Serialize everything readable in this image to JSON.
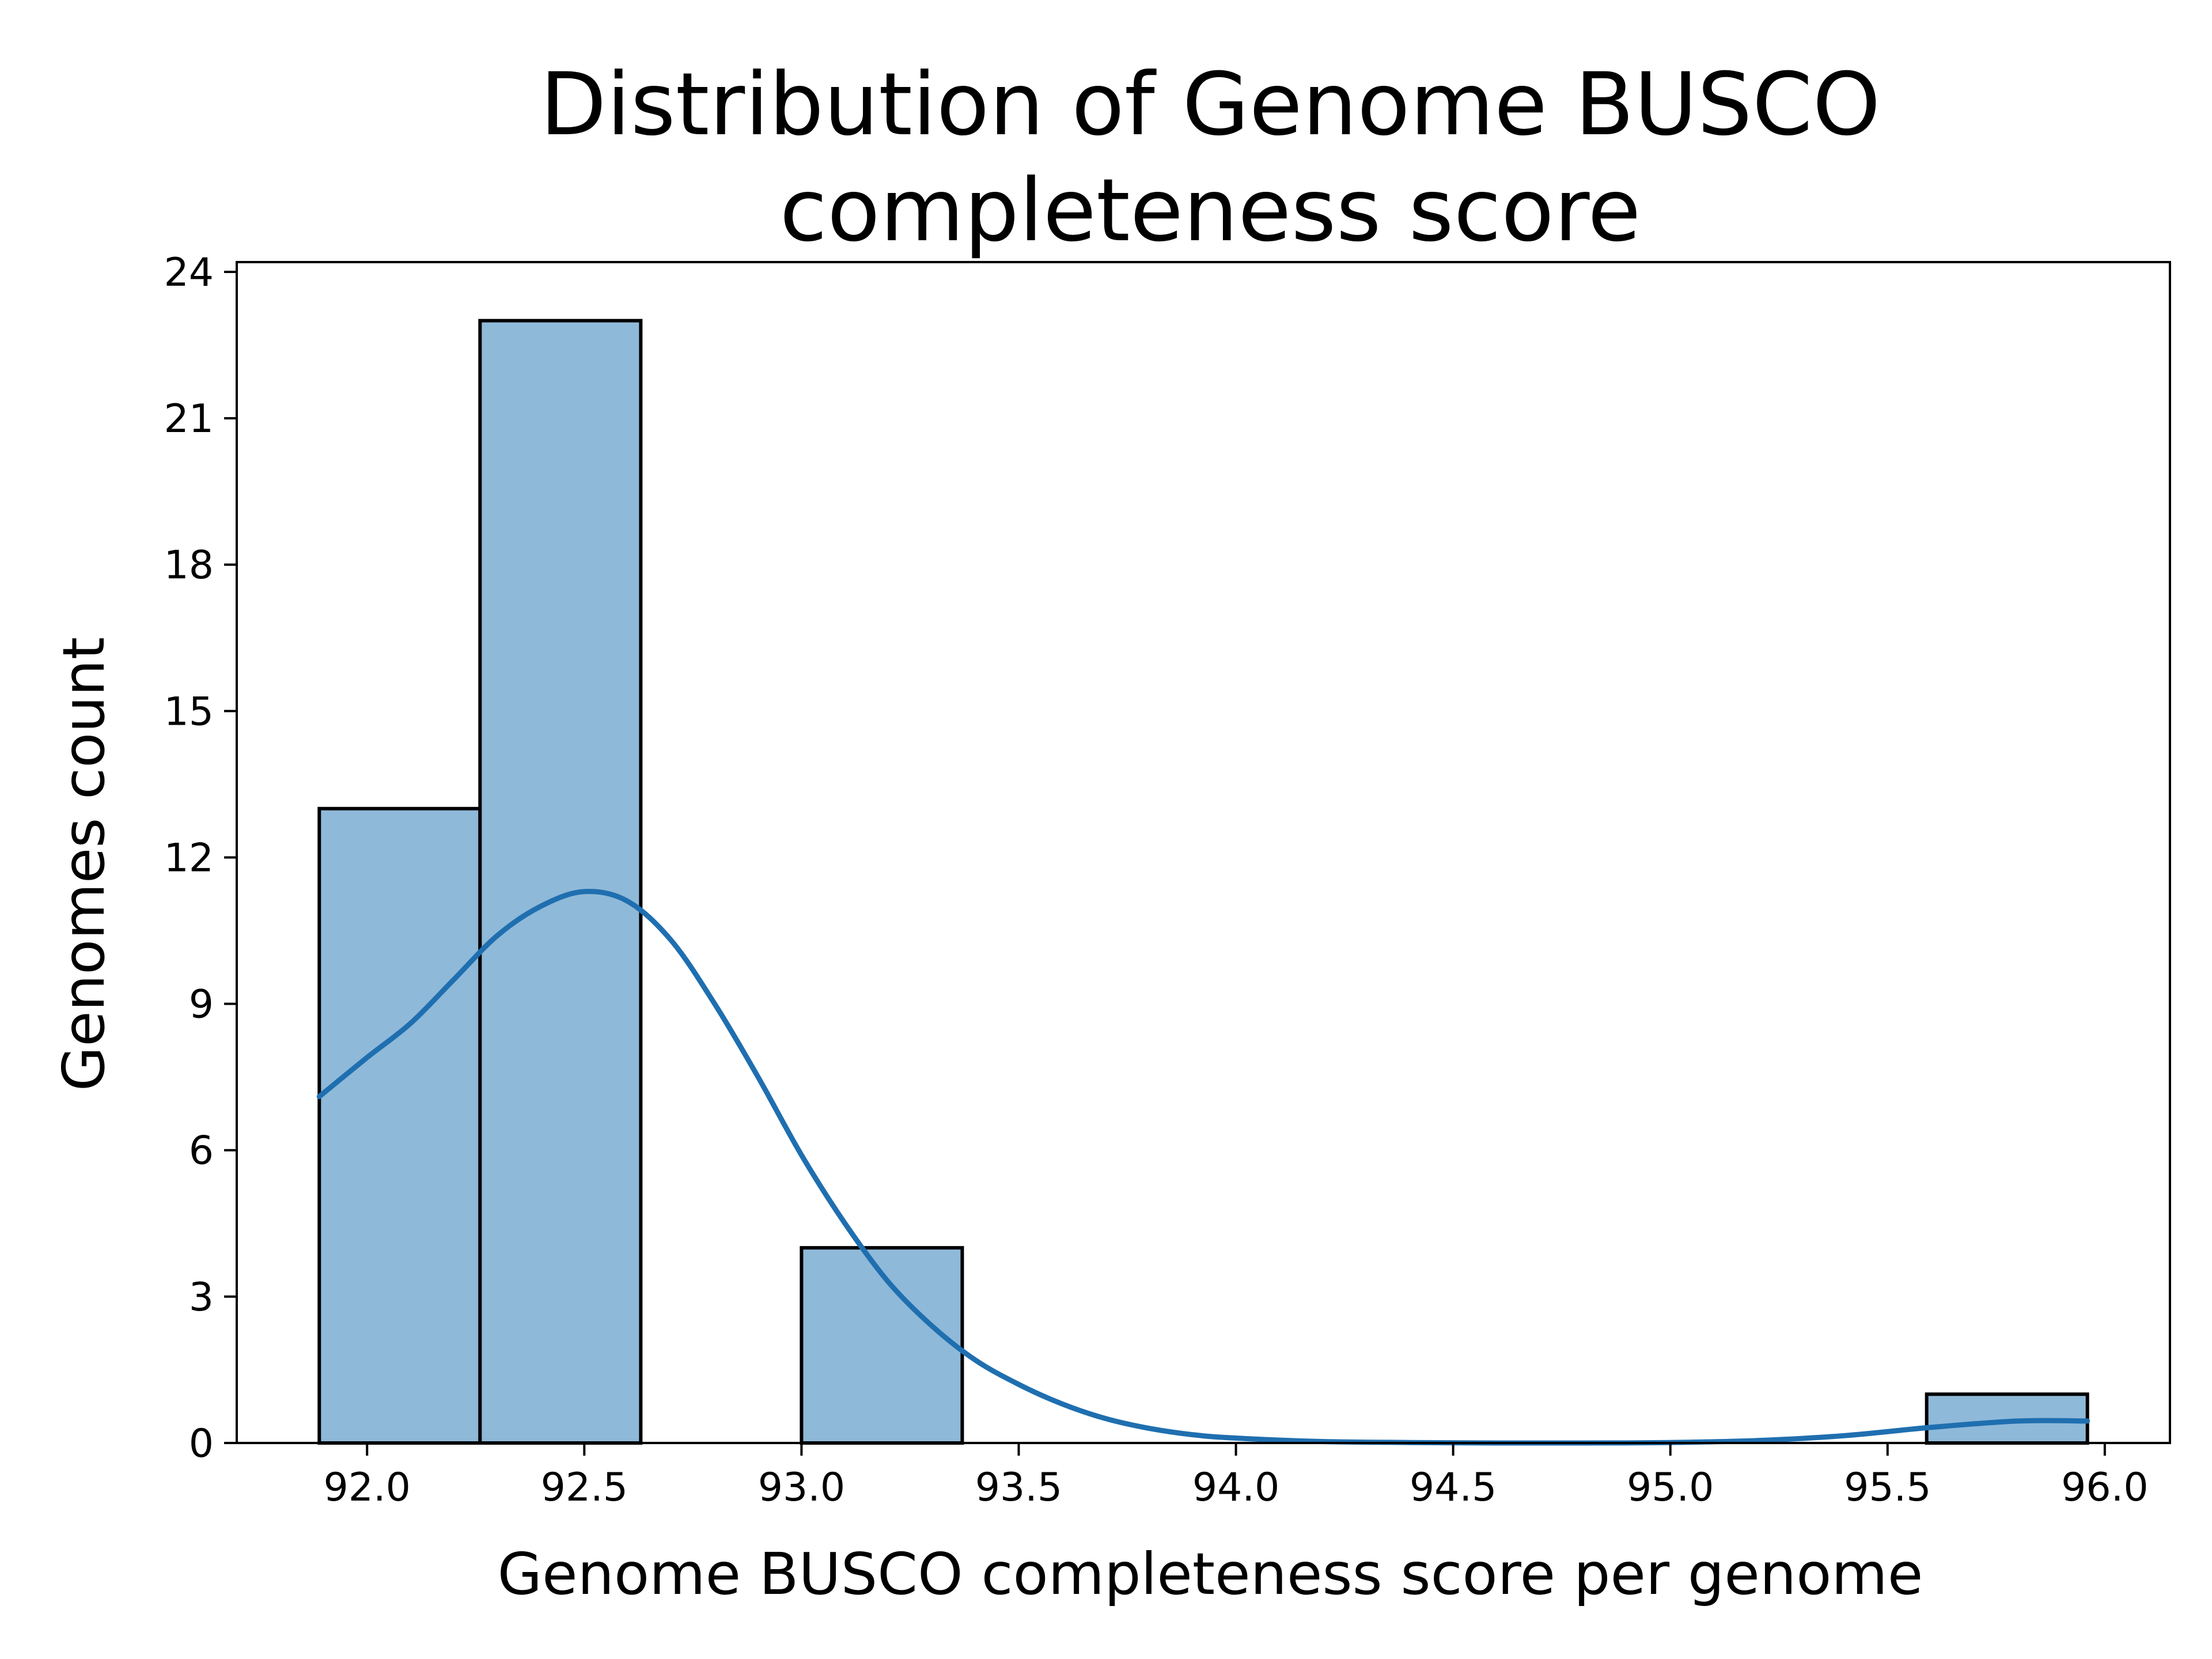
{
  "chart_data": {
    "type": "histogram",
    "title": "Distribution of Genome BUSCO completeness score",
    "title_lines": [
      "Distribution of Genome BUSCO",
      "completeness score"
    ],
    "xlabel": "Genome BUSCO completeness score per genome",
    "ylabel": "Genomes count",
    "xlim": [
      91.7,
      96.15
    ],
    "ylim": [
      0,
      24.2
    ],
    "xticks": [
      92.0,
      92.5,
      93.0,
      93.5,
      94.0,
      94.5,
      95.0,
      95.5,
      96.0
    ],
    "xtick_labels": [
      "92.0",
      "92.5",
      "93.0",
      "93.5",
      "94.0",
      "94.5",
      "95.0",
      "95.5",
      "96.0"
    ],
    "yticks": [
      0,
      3,
      6,
      9,
      12,
      15,
      18,
      21,
      24
    ],
    "ytick_labels": [
      "0",
      "3",
      "6",
      "9",
      "12",
      "15",
      "18",
      "21",
      "24"
    ],
    "bins": [
      {
        "x0": 91.89,
        "x1": 92.26,
        "count": 13
      },
      {
        "x0": 92.26,
        "x1": 92.63,
        "count": 23
      },
      {
        "x0": 92.63,
        "x1": 93.0,
        "count": 0
      },
      {
        "x0": 93.0,
        "x1": 93.37,
        "count": 4
      },
      {
        "x0": 93.37,
        "x1": 93.74,
        "count": 0
      },
      {
        "x0": 93.74,
        "x1": 94.11,
        "count": 0
      },
      {
        "x0": 94.11,
        "x1": 94.48,
        "count": 0
      },
      {
        "x0": 94.48,
        "x1": 94.85,
        "count": 0
      },
      {
        "x0": 94.85,
        "x1": 95.22,
        "count": 0
      },
      {
        "x0": 95.22,
        "x1": 95.59,
        "count": 0
      },
      {
        "x0": 95.59,
        "x1": 95.96,
        "count": 1
      }
    ],
    "kde": {
      "x": [
        91.89,
        92.0,
        92.1,
        92.2,
        92.3,
        92.4,
        92.5,
        92.6,
        92.7,
        92.8,
        92.9,
        93.0,
        93.1,
        93.2,
        93.3,
        93.4,
        93.5,
        93.6,
        93.7,
        93.8,
        93.9,
        94.0,
        94.2,
        94.4,
        94.6,
        94.8,
        95.0,
        95.2,
        95.4,
        95.6,
        95.8,
        95.96
      ],
      "y": [
        7.1,
        7.9,
        8.6,
        9.5,
        10.4,
        11.0,
        11.3,
        11.1,
        10.3,
        9.0,
        7.5,
        5.9,
        4.5,
        3.3,
        2.4,
        1.7,
        1.2,
        0.8,
        0.5,
        0.3,
        0.17,
        0.1,
        0.03,
        0.01,
        0.0,
        0.0,
        0.01,
        0.05,
        0.15,
        0.32,
        0.45,
        0.45
      ]
    },
    "colors": {
      "bar_fill": "#8fb9d9",
      "bar_edge": "#000000",
      "kde_line": "#1f6fb0",
      "axis": "#000000"
    },
    "grid": false,
    "legend": "none"
  }
}
